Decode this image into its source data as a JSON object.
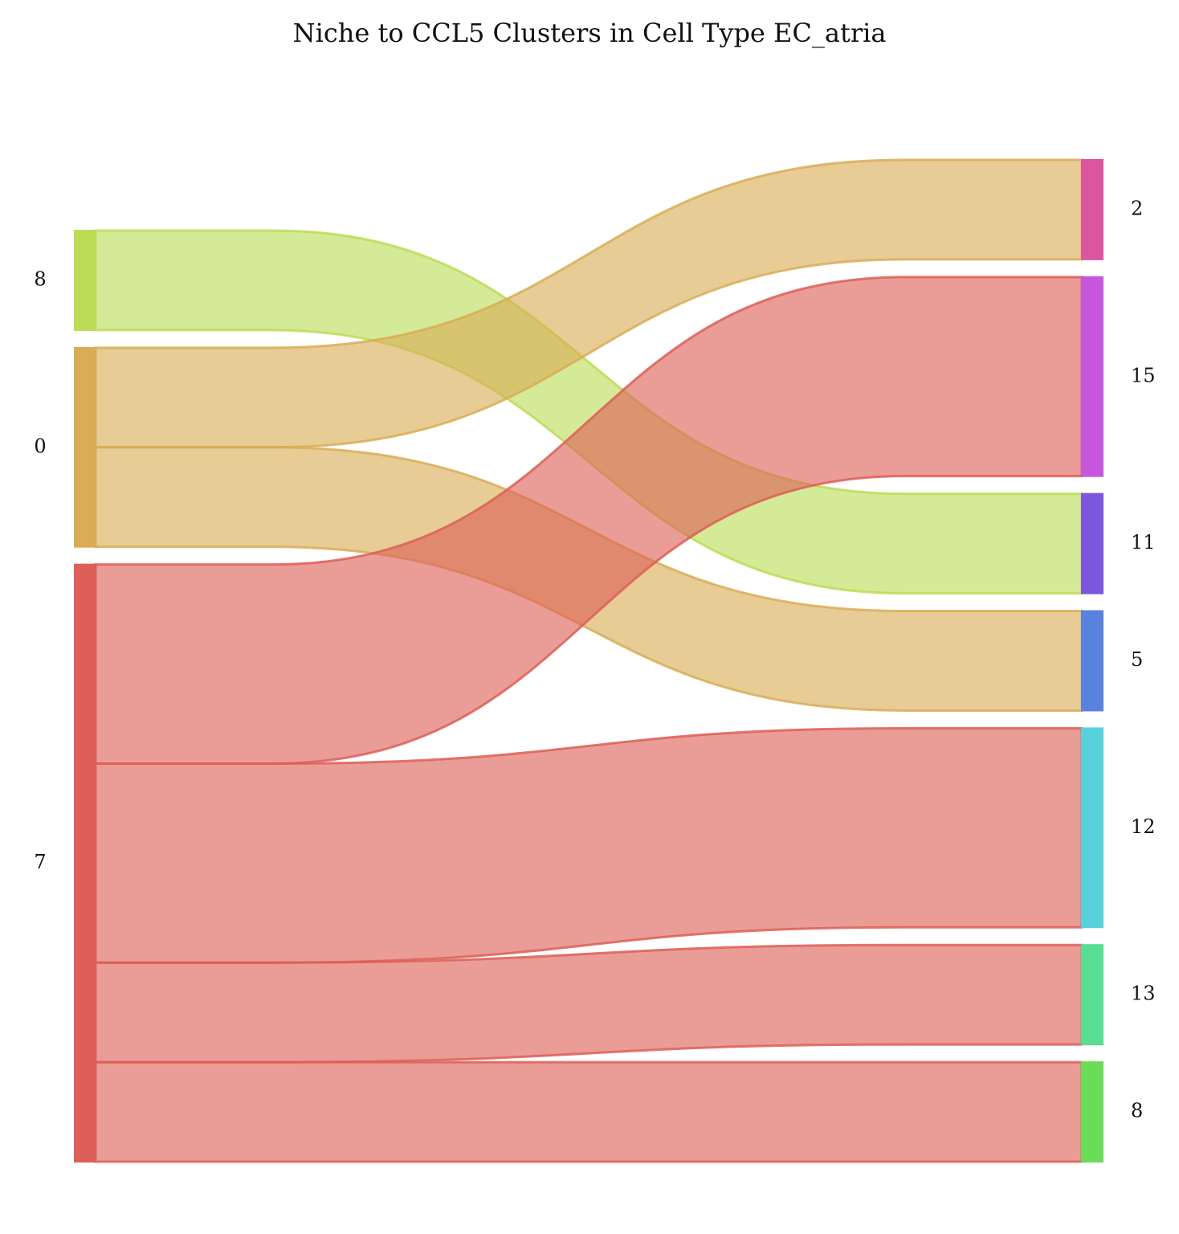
{
  "chart_data": {
    "type": "sankey",
    "title": "Niche to CCL5 Clusters in Cell Type EC_atria",
    "source_nodes": [
      {
        "id": "s8",
        "label": "8",
        "color": "#bbdd55"
      },
      {
        "id": "s0",
        "label": "0",
        "color": "#d9ad56"
      },
      {
        "id": "s7",
        "label": "7",
        "color": "#dd5f57"
      }
    ],
    "target_nodes": [
      {
        "id": "t2",
        "label": "2",
        "color": "#dd55a0"
      },
      {
        "id": "t15",
        "label": "15",
        "color": "#c657dd"
      },
      {
        "id": "t11",
        "label": "11",
        "color": "#7b57dd"
      },
      {
        "id": "t5",
        "label": "5",
        "color": "#5882dd"
      },
      {
        "id": "t12",
        "label": "12",
        "color": "#57d2dd"
      },
      {
        "id": "t13",
        "label": "13",
        "color": "#57dd94"
      },
      {
        "id": "t8",
        "label": "8",
        "color": "#69dd57"
      }
    ],
    "links": [
      {
        "source": "s8",
        "target": "t11",
        "value": 1
      },
      {
        "source": "s0",
        "target": "t2",
        "value": 1
      },
      {
        "source": "s0",
        "target": "t5",
        "value": 1
      },
      {
        "source": "s7",
        "target": "t15",
        "value": 2
      },
      {
        "source": "s7",
        "target": "t12",
        "value": 2
      },
      {
        "source": "s7",
        "target": "t13",
        "value": 1
      },
      {
        "source": "s7",
        "target": "t8",
        "value": 1
      }
    ]
  }
}
